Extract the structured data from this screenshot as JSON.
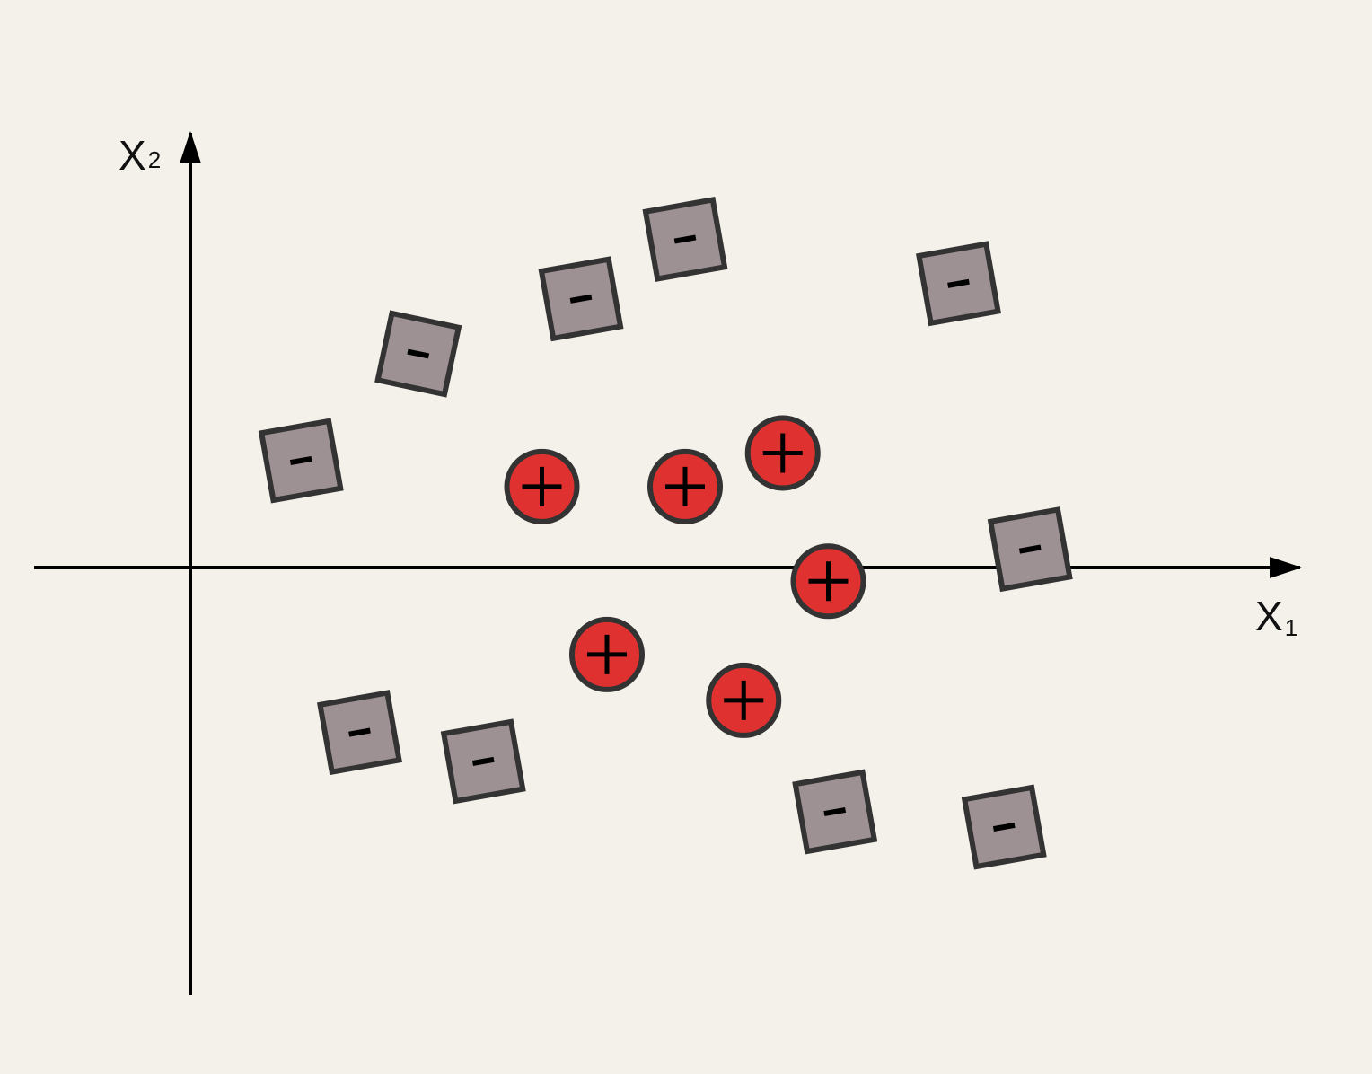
{
  "chart_data": {
    "type": "scatter",
    "xlabel": {
      "main": "X",
      "sub": "1"
    },
    "ylabel": {
      "main": "X",
      "sub": "2"
    },
    "xlim": [
      -1.2,
      8.2
    ],
    "ylim": [
      -3.25,
      3.05
    ],
    "grid": false,
    "legend": "none",
    "series": [
      {
        "marker": "circle",
        "symbol": "+",
        "color": "#e03131",
        "points": [
          {
            "x": 2.7,
            "y": 0.53
          },
          {
            "x": 3.8,
            "y": 0.53
          },
          {
            "x": 4.55,
            "y": 0.75
          },
          {
            "x": 4.9,
            "y": -0.09
          },
          {
            "x": 3.2,
            "y": -0.57
          },
          {
            "x": 4.25,
            "y": -0.87
          }
        ]
      },
      {
        "marker": "square",
        "symbol": "–",
        "color": "#9e9193",
        "points": [
          {
            "x": 0.85,
            "y": 0.7
          },
          {
            "x": 1.75,
            "y": 1.4
          },
          {
            "x": 3.0,
            "y": 1.76
          },
          {
            "x": 3.8,
            "y": 2.15
          },
          {
            "x": 5.9,
            "y": 1.86
          },
          {
            "x": 6.45,
            "y": 0.12
          },
          {
            "x": 1.3,
            "y": -1.08
          },
          {
            "x": 2.25,
            "y": -1.27
          },
          {
            "x": 4.95,
            "y": -1.6
          },
          {
            "x": 6.25,
            "y": -1.7
          }
        ]
      }
    ]
  },
  "colors": {
    "background": "#f4f1ea",
    "axis": "#000000",
    "positive": "#e03131",
    "negative": "#9e9193",
    "outline": "#333333"
  }
}
